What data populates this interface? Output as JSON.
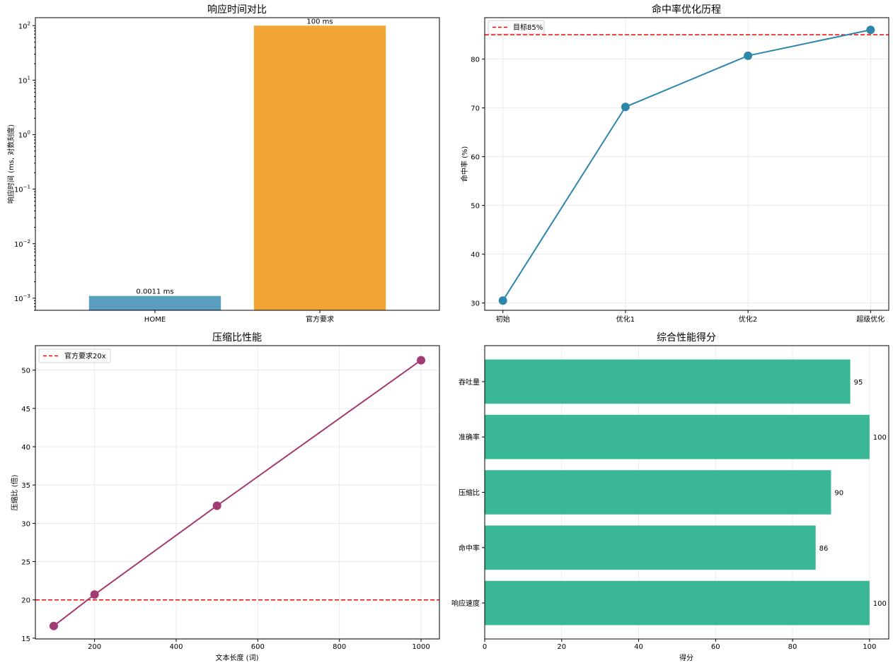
{
  "colors": {
    "bar_home": "#5a9fc0",
    "bar_official": "#f0a534",
    "hit_line": "#2e86ab",
    "compress_line": "#a23b72",
    "score_bar": "#3ab795",
    "target_line": "#ff0000",
    "grid": "#e6e6e6"
  },
  "chart_data": [
    {
      "type": "bar",
      "title": "响应时间对比",
      "xlabel": "",
      "ylabel": "响应时间 (ms, 对数刻度)",
      "yscale": "log",
      "ylim": [
        0.0006,
        140
      ],
      "yticks": [
        0.001,
        0.01,
        0.1,
        1,
        10,
        100
      ],
      "ytick_labels": [
        {
          "base": "10",
          "exp": "−3"
        },
        {
          "base": "10",
          "exp": "−2"
        },
        {
          "base": "10",
          "exp": "−1"
        },
        {
          "base": "10",
          "exp": "0"
        },
        {
          "base": "10",
          "exp": "1"
        },
        {
          "base": "10",
          "exp": "2"
        }
      ],
      "categories": [
        "HOME",
        "官方要求"
      ],
      "values": [
        0.0011,
        100
      ],
      "data_labels": [
        "0.0011 ms",
        "100 ms"
      ],
      "grid": false
    },
    {
      "type": "line",
      "title": "命中率优化历程",
      "xlabel": "",
      "ylabel": "命中率 (%)",
      "categories": [
        "初始",
        "优化1",
        "优化2",
        "超级优化"
      ],
      "values": [
        30.5,
        70.2,
        80.7,
        86.0
      ],
      "ylim": [
        28.5,
        88.5
      ],
      "yticks": [
        30,
        40,
        50,
        60,
        70,
        80
      ],
      "reference_line": {
        "value": 85,
        "label": "目标85%"
      },
      "legend": "top-left",
      "grid": true
    },
    {
      "type": "line",
      "title": "压缩比性能",
      "xlabel": "文本长度 (词)",
      "ylabel": "压缩比 (倍)",
      "x": [
        100,
        200,
        500,
        1000
      ],
      "values": [
        16.6,
        20.7,
        32.3,
        51.3
      ],
      "xlim": [
        55,
        1045
      ],
      "ylim": [
        14.9,
        53.2
      ],
      "xticks": [
        200,
        400,
        600,
        800,
        1000
      ],
      "yticks": [
        15,
        20,
        25,
        30,
        35,
        40,
        45,
        50
      ],
      "reference_line": {
        "value": 20,
        "label": "官方要求20x"
      },
      "legend": "top-left",
      "grid": true
    },
    {
      "type": "bar",
      "orientation": "horizontal",
      "title": "综合性能得分",
      "xlabel": "得分",
      "ylabel": "",
      "categories": [
        "响应速度",
        "命中率",
        "压缩比",
        "准确率",
        "吞吐量"
      ],
      "values": [
        100,
        86,
        90,
        100,
        95
      ],
      "data_labels": [
        "100",
        "86",
        "90",
        "100",
        "95"
      ],
      "xlim": [
        0,
        105
      ],
      "xticks": [
        0,
        20,
        40,
        60,
        80,
        100
      ],
      "grid": true
    }
  ]
}
